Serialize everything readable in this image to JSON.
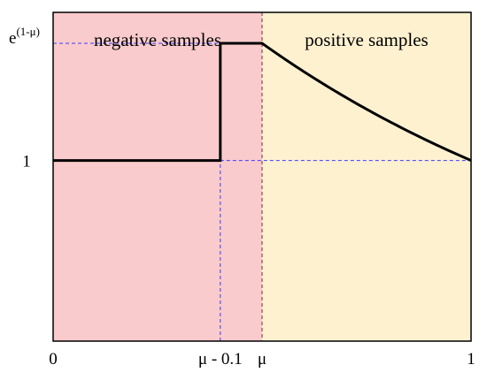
{
  "chart_data": {
    "type": "line",
    "title": "",
    "xlabel": "",
    "ylabel": "",
    "mu": 0.5,
    "xlim": [
      0,
      1
    ],
    "ylim": [
      0,
      1.82
    ],
    "regions": [
      {
        "name": "negative samples",
        "x_range": [
          0,
          0.5
        ],
        "color": "#F9CBCC"
      },
      {
        "name": "positive samples",
        "x_range": [
          0.5,
          1
        ],
        "color": "#FDF1D0"
      }
    ],
    "x_ticks": [
      {
        "value": 0,
        "label": "0"
      },
      {
        "value": 0.4,
        "label": "μ - 0.1"
      },
      {
        "value": 0.5,
        "label": "μ"
      },
      {
        "value": 1,
        "label": "1"
      }
    ],
    "y_ticks": [
      {
        "value": 1,
        "label": "1"
      },
      {
        "value": 1.6487,
        "label_base": "e",
        "label_exp": "(1-μ)"
      }
    ],
    "series": [
      {
        "step_points": [
          [
            0,
            1
          ],
          [
            0.4,
            1
          ],
          [
            0.4,
            1.6487
          ],
          [
            0.5,
            1.6487
          ]
        ],
        "curve": "exp(1 - x)",
        "curve_range": [
          0.5,
          1
        ]
      }
    ],
    "reference_lines": [
      {
        "orientation": "vertical",
        "x": 0.4,
        "y_range": [
          0,
          1.6487
        ]
      },
      {
        "orientation": "vertical",
        "x": 0.5,
        "y_range": [
          0,
          1.82
        ]
      },
      {
        "orientation": "horizontal",
        "y": 1.6487,
        "x_range": [
          0,
          0.5
        ]
      },
      {
        "orientation": "horizontal",
        "y": 1,
        "x_range": [
          0.4,
          1
        ]
      }
    ],
    "colors": {
      "line": "#000000",
      "guide": "#3B3BFF",
      "divider": "#7A2A3A"
    }
  }
}
